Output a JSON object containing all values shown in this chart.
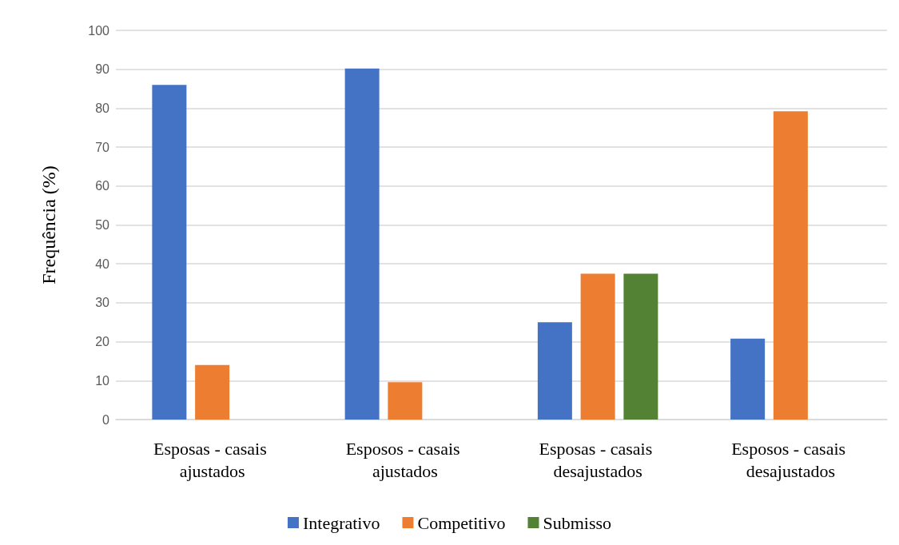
{
  "chart_data": {
    "type": "bar",
    "ylabel": "Frequência (%)",
    "categories": [
      "Esposas - casais ajustados",
      "Esposos - casais ajustados",
      "Esposas - casais desajustados",
      "Esposos - casais desajustados"
    ],
    "series": [
      {
        "name": "Integrativo",
        "color": "#4472c4",
        "values": [
          86,
          90.2,
          25,
          20.8
        ]
      },
      {
        "name": "Competitivo",
        "color": "#ed7d31",
        "values": [
          14,
          9.6,
          37.5,
          79.2
        ]
      },
      {
        "name": "Submisso",
        "color": "#548235",
        "values": [
          null,
          null,
          37.5,
          null
        ]
      }
    ],
    "ylim": [
      0,
      100
    ],
    "yticks": [
      0,
      10,
      20,
      30,
      40,
      50,
      60,
      70,
      80,
      90,
      100
    ],
    "grid": "y",
    "legend": "bottom"
  }
}
